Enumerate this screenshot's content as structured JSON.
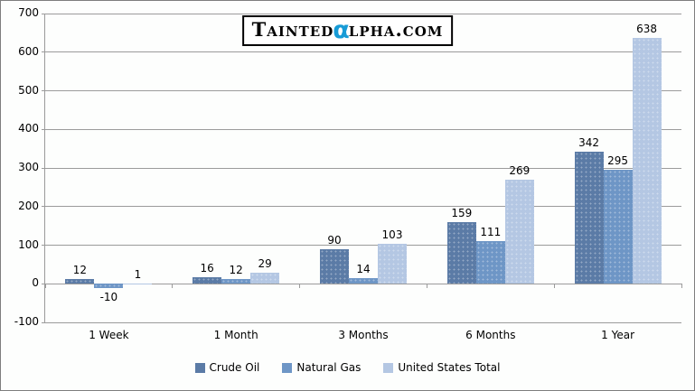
{
  "logo": {
    "left": "Tainted",
    "alpha": "α",
    "right": "lpha.com",
    "alpha_color": "#179bd6"
  },
  "chart_data": {
    "type": "bar",
    "title": "",
    "categories": [
      "1 Week",
      "1 Month",
      "3 Months",
      "6 Months",
      "1 Year"
    ],
    "series": [
      {
        "name": "Crude Oil",
        "color": "#5b7ba6",
        "values": [
          12,
          16,
          90,
          159,
          342
        ]
      },
      {
        "name": "Natural Gas",
        "color": "#6e96c6",
        "values": [
          -10,
          12,
          14,
          111,
          295
        ]
      },
      {
        "name": "United States Total",
        "color": "#b4c7e3",
        "values": [
          1,
          29,
          103,
          269,
          638
        ]
      }
    ],
    "xlabel": "",
    "ylabel": "",
    "ylim": [
      -100,
      700
    ],
    "yticks": [
      700,
      600,
      500,
      400,
      300,
      200,
      100,
      0,
      -100
    ],
    "grid": true,
    "gridline_color": "#9b9b9b",
    "legend_position": "bottom",
    "data_labels": true
  }
}
